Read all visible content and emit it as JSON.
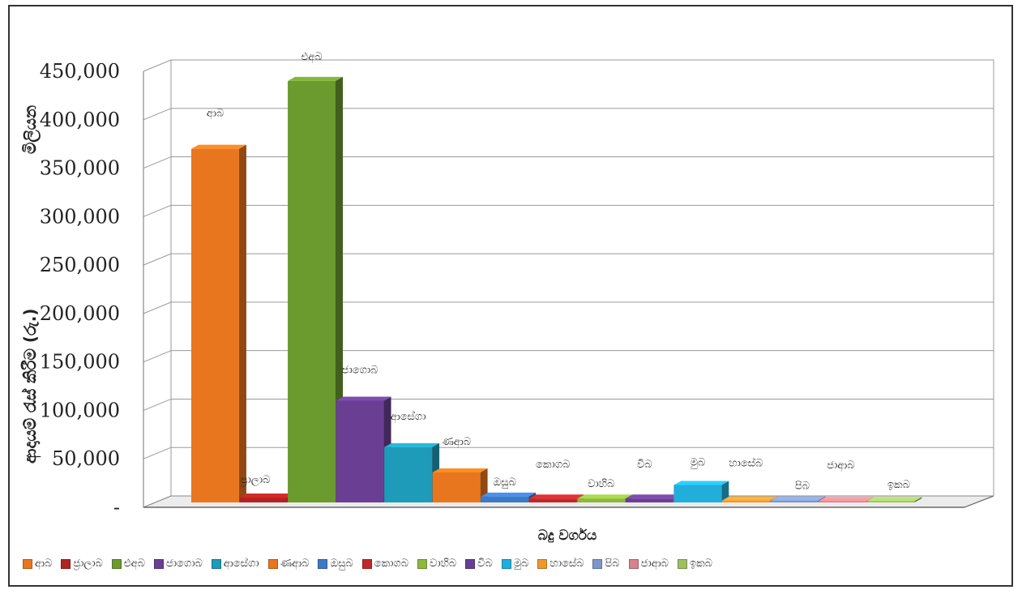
{
  "chart_data": {
    "type": "bar",
    "ylabel": "ආදායම් රැස් කිරීම (රු.)",
    "ylabel_top": "මිලියන",
    "xlabel": "බදු වර්ගය",
    "ylim": [
      0,
      450000
    ],
    "yticks": [
      "-",
      "50,000",
      "100,000",
      "150,000",
      "200,000",
      "250,000",
      "300,000",
      "350,000",
      "400,000",
      "450,000"
    ],
    "grid": true,
    "legend_position": "bottom",
    "categories": [
      "ආබ",
      "ප්‍රාලාබ",
      "එඅබ",
      "ජාගොබ",
      "ආසේගා",
      "ණආබ",
      "ඔසුබ",
      "කොගබ",
      "වාහිබ",
      "විබ",
      "මුබ",
      "හාසේබ",
      "පිබ",
      "ජාආබ",
      "ඉකබ"
    ],
    "legend_labels": [
      "ආබ",
      "ජ්‍රාලාබ",
      "එඅබ",
      "ජාගොබ",
      "ආසේගා",
      "ණආබ",
      "ඔසුබ",
      "කොගබ",
      "වාහිබ",
      "විබ",
      "මුබ",
      "හාසේබ",
      "පිබ",
      "ජාආබ",
      "ඉකබ"
    ],
    "values": [
      365000,
      5000,
      435000,
      105000,
      57000,
      31000,
      6000,
      4000,
      4000,
      4000,
      18000,
      2000,
      2000,
      1500,
      1500
    ],
    "colors": [
      "#E8761F",
      "#B22222",
      "#6B9A2E",
      "#6A3F93",
      "#1E9BB8",
      "#E8761F",
      "#3E79C6",
      "#C0282A",
      "#8DB73E",
      "#6A3F93",
      "#22AEDB",
      "#F0962E",
      "#7E97C8",
      "#D7828A",
      "#9CBF62"
    ]
  }
}
